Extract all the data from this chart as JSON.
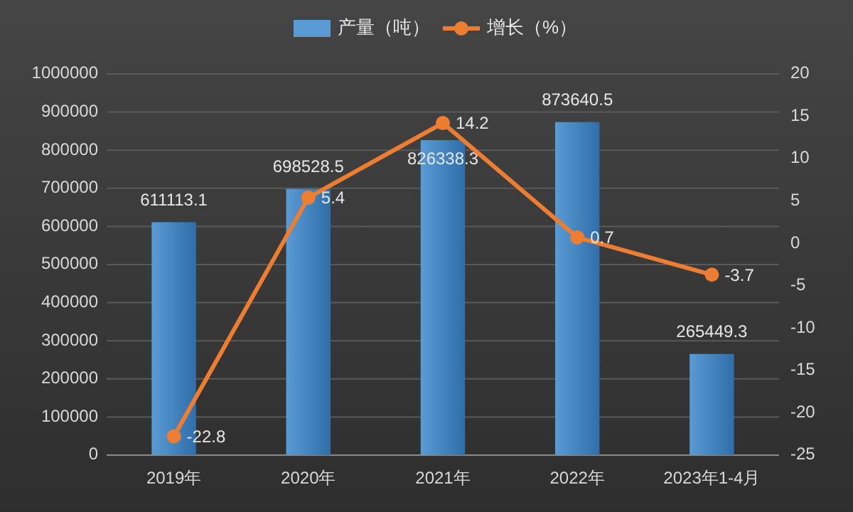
{
  "chart_data": {
    "type": "bar",
    "categories": [
      "2019年",
      "2020年",
      "2021年",
      "2022年",
      "2023年1-4月"
    ],
    "series": [
      {
        "name": "产量（吨）",
        "color": "#5b9bd5",
        "values": [
          611113.1,
          698528.5,
          826338.3,
          873640.5,
          265449.3
        ]
      },
      {
        "name": "增长（%）",
        "type": "line",
        "axis": "y2",
        "color": "#ed7d31",
        "marker": "circle",
        "values": [
          -22.8,
          5.4,
          14.2,
          0.7,
          -3.7
        ]
      }
    ],
    "ylim": [
      0,
      1000000
    ],
    "yticks": [
      0,
      100000,
      200000,
      300000,
      400000,
      500000,
      600000,
      700000,
      800000,
      900000,
      1000000
    ],
    "y2lim": [
      -25,
      20
    ],
    "y2ticks": [
      -25,
      -20,
      -15,
      -10,
      -5,
      0,
      5,
      10,
      15,
      20
    ],
    "grid": "y",
    "legend": "top",
    "data_labels": true
  }
}
